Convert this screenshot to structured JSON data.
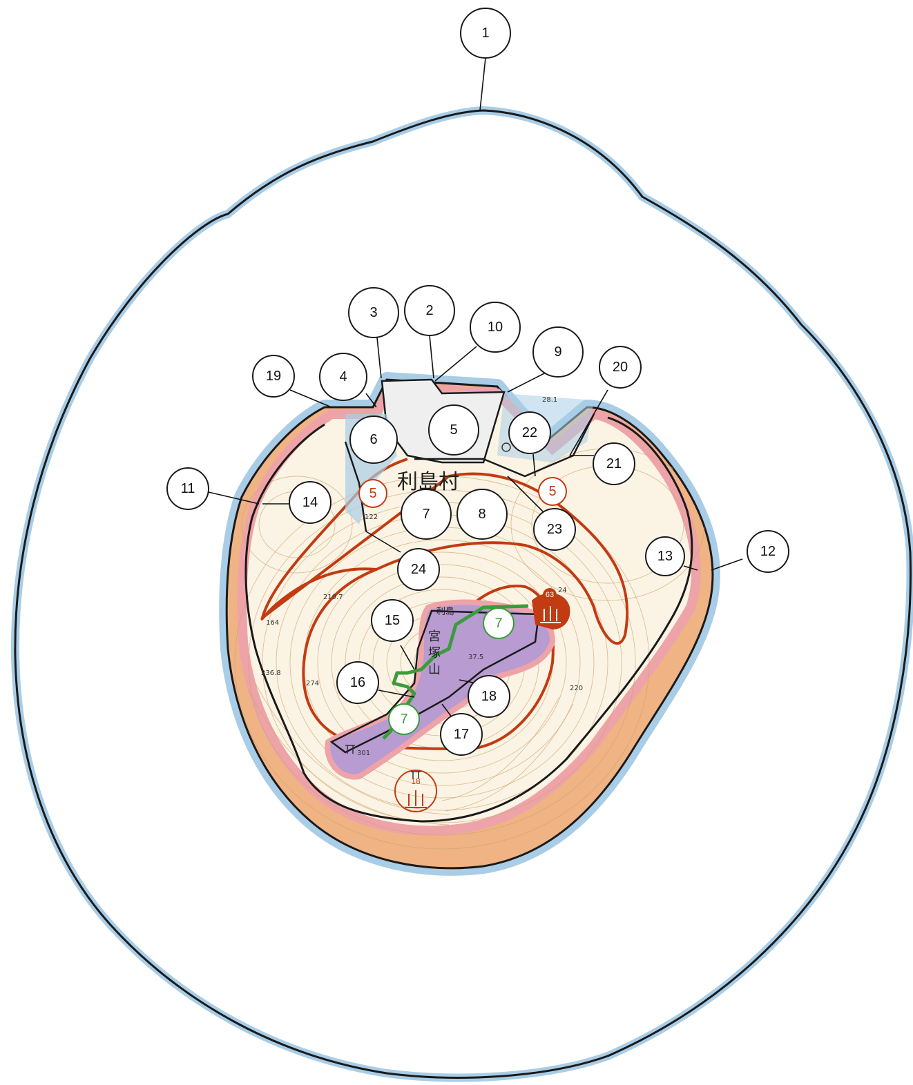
{
  "place_names": {
    "village": "利島村",
    "mountain_line1": "宮",
    "mountain_line2": "塚",
    "mountain_line3": "山",
    "island_small": "利島"
  },
  "elevation_labels": [
    "28.1",
    "122",
    "219.7",
    "164",
    "274",
    "236.8",
    "301",
    "24",
    "220",
    "37.5"
  ],
  "zone_labels": [
    "1",
    "2",
    "3",
    "4",
    "5",
    "6",
    "7",
    "8",
    "9",
    "10",
    "11",
    "12",
    "13",
    "14",
    "15",
    "16",
    "17",
    "18",
    "19",
    "20",
    "21",
    "22",
    "23",
    "24"
  ],
  "orange_markers": [
    "5",
    "5",
    "63",
    "18"
  ],
  "green_markers": [
    "7",
    "7"
  ],
  "colors": {
    "sea_boundary": "#a9cde6",
    "outline": "#1a1a1a",
    "pink_zone": "#eea3a8",
    "orange_coast": "#f0a970",
    "red_route": "#c23b12",
    "green_route": "#3a9c3a",
    "purple_zone": "#b79bd1",
    "contour": "#c9a46a"
  },
  "icons": [
    "shrine-icon",
    "hot-spring-icon",
    "torii-icon",
    "temple-icon"
  ]
}
